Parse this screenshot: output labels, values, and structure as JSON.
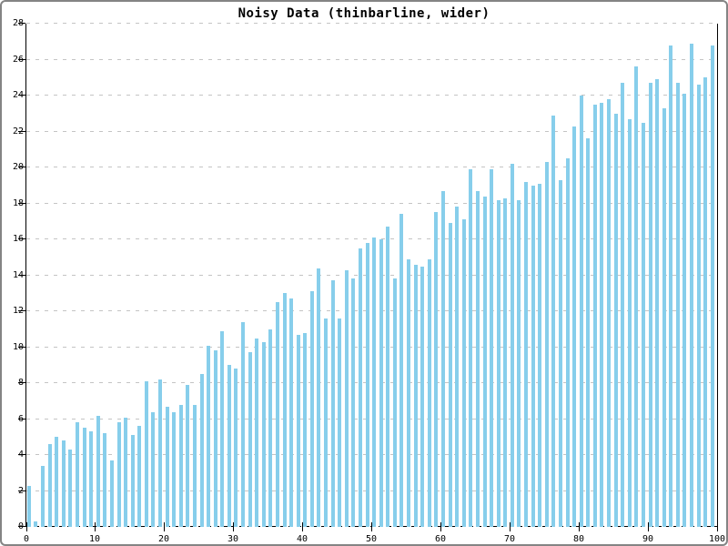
{
  "chart_data": {
    "type": "bar",
    "title": "Noisy Data (thinbarline, wider)",
    "xlabel": "",
    "ylabel": "",
    "xlim": [
      0,
      100
    ],
    "ylim": [
      0,
      28
    ],
    "x_ticks": [
      0,
      10,
      20,
      30,
      40,
      50,
      60,
      70,
      80,
      90,
      100
    ],
    "y_ticks": [
      0,
      2,
      4,
      6,
      8,
      10,
      12,
      14,
      16,
      18,
      20,
      22,
      24,
      26,
      28
    ],
    "grid": "horizontal-dashed",
    "legend_position": "none",
    "x": [
      0,
      1,
      2,
      3,
      4,
      5,
      6,
      7,
      8,
      9,
      10,
      11,
      12,
      13,
      14,
      15,
      16,
      17,
      18,
      19,
      20,
      21,
      22,
      23,
      24,
      25,
      26,
      27,
      28,
      29,
      30,
      31,
      32,
      33,
      34,
      35,
      36,
      37,
      38,
      39,
      40,
      41,
      42,
      43,
      44,
      45,
      46,
      47,
      48,
      49,
      50,
      51,
      52,
      53,
      54,
      55,
      56,
      57,
      58,
      59,
      60,
      61,
      62,
      63,
      64,
      65,
      66,
      67,
      68,
      69,
      70,
      71,
      72,
      73,
      74,
      75,
      76,
      77,
      78,
      79,
      80,
      81,
      82,
      83,
      84,
      85,
      86,
      87,
      88,
      89,
      90,
      91,
      92,
      93,
      94,
      95,
      96,
      97,
      98,
      99
    ],
    "values": [
      2.3,
      0.3,
      3.4,
      4.6,
      5.0,
      4.8,
      4.3,
      5.8,
      5.5,
      5.3,
      6.2,
      5.2,
      3.7,
      5.8,
      6.1,
      5.1,
      5.6,
      8.1,
      6.4,
      8.2,
      6.7,
      6.4,
      6.8,
      7.9,
      6.8,
      8.5,
      10.1,
      9.8,
      10.9,
      9.0,
      8.8,
      11.4,
      9.7,
      10.5,
      10.3,
      11.0,
      12.5,
      13.0,
      12.7,
      10.7,
      10.8,
      13.1,
      14.4,
      11.6,
      13.7,
      11.6,
      14.3,
      13.8,
      15.5,
      15.8,
      16.1,
      16.0,
      16.7,
      13.8,
      17.4,
      14.9,
      14.6,
      14.5,
      14.9,
      17.5,
      18.7,
      16.9,
      17.8,
      17.1,
      19.9,
      18.7,
      18.4,
      19.9,
      18.2,
      18.3,
      20.2,
      18.2,
      19.2,
      19.0,
      19.1,
      20.3,
      22.9,
      19.3,
      20.5,
      22.3,
      24.0,
      21.6,
      23.5,
      23.6,
      23.8,
      23.0,
      24.7,
      22.7,
      25.6,
      22.5,
      24.7,
      24.9,
      23.3,
      26.8,
      24.7,
      24.1,
      26.9,
      24.6,
      25.0,
      26.8
    ],
    "colors": {
      "bar": "#87CEEB",
      "grid": "#c4c4c4",
      "axis": "#000000",
      "background": "#ffffff",
      "border": "#848484"
    }
  }
}
